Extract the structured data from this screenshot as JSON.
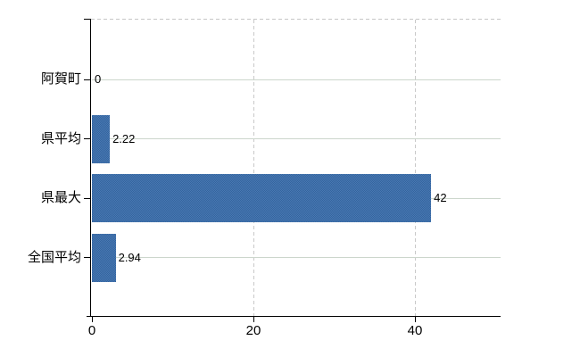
{
  "chart_data": {
    "type": "bar",
    "orientation": "horizontal",
    "title": "",
    "xlabel": "",
    "ylabel": "",
    "categories": [
      "阿賀町",
      "県平均",
      "県最大",
      "全国平均"
    ],
    "values": [
      0,
      2.22,
      42,
      2.94
    ],
    "value_labels": [
      "0",
      "2.22",
      "42",
      "2.94"
    ],
    "x_ticks": [
      {
        "value": 0,
        "label": "0"
      },
      {
        "value": 20,
        "label": "20"
      },
      {
        "value": 40,
        "label": "40"
      }
    ],
    "xlim": [
      0,
      50.7
    ],
    "grid": {
      "horizontal": "solid",
      "vertical": "dashed",
      "top_border": "dashed"
    },
    "legend_position": "none",
    "colors": {
      "bar": "#3b6ca8",
      "bar_dither_dark": "#33659f",
      "bar_dither_light": "#4a78b2",
      "h_gridline": "#ccd6cc",
      "v_gridline": "#c9c9c9",
      "top_border": "#c6c6c6",
      "axis": "#000000",
      "text": "#000000",
      "background": "#ffffff"
    }
  }
}
